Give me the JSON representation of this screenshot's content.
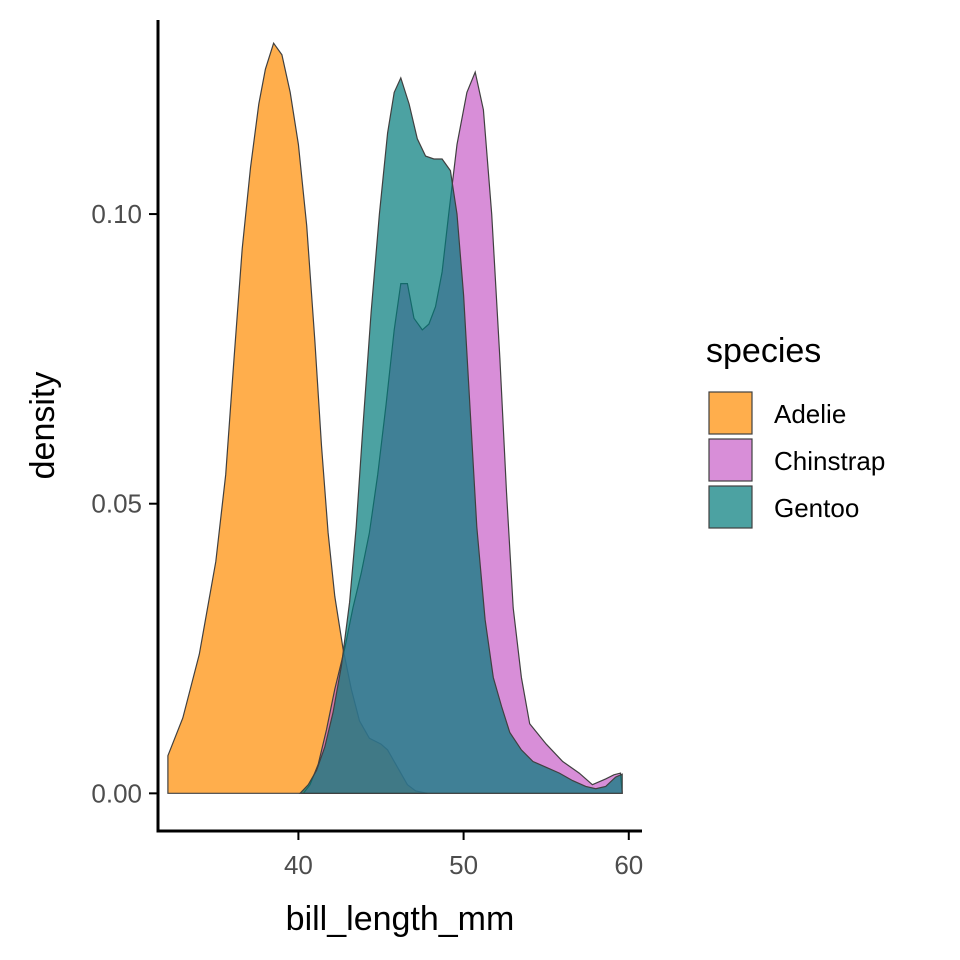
{
  "chart_data": {
    "type": "area",
    "subtype": "density",
    "xlabel": "bill_length_mm",
    "ylabel": "density",
    "xlim": [
      31.5,
      60.8
    ],
    "ylim": [
      -0.0065,
      0.1335
    ],
    "x_ticks": [
      40,
      50,
      60
    ],
    "x_tick_labels": [
      "40",
      "50",
      "60"
    ],
    "y_ticks": [
      0,
      0.05,
      0.1
    ],
    "y_tick_labels": [
      "0.00",
      "0.05",
      "0.10"
    ],
    "grid": false,
    "legend": {
      "title": "species",
      "position": "right"
    },
    "fill_opacity": 0.7,
    "series": [
      {
        "name": "Adelie",
        "color": "#FF8C00",
        "points": [
          [
            32.1,
            0.0065
          ],
          [
            33.0,
            0.013
          ],
          [
            34.0,
            0.024
          ],
          [
            35.0,
            0.04
          ],
          [
            35.6,
            0.055
          ],
          [
            36.1,
            0.075
          ],
          [
            36.6,
            0.094
          ],
          [
            37.1,
            0.108
          ],
          [
            37.6,
            0.119
          ],
          [
            38.0,
            0.125
          ],
          [
            38.5,
            0.1295
          ],
          [
            39.0,
            0.1275
          ],
          [
            39.5,
            0.121
          ],
          [
            40.0,
            0.112
          ],
          [
            40.5,
            0.098
          ],
          [
            41.0,
            0.078
          ],
          [
            41.4,
            0.06
          ],
          [
            41.8,
            0.045
          ],
          [
            42.2,
            0.034
          ],
          [
            42.7,
            0.025
          ],
          [
            43.2,
            0.018
          ],
          [
            43.7,
            0.0125
          ],
          [
            44.3,
            0.0095
          ],
          [
            45.0,
            0.0085
          ],
          [
            45.4,
            0.0075
          ],
          [
            45.8,
            0.0055
          ],
          [
            46.2,
            0.0035
          ],
          [
            46.6,
            0.0015
          ],
          [
            47.1,
            0.0004
          ],
          [
            47.8,
            0.0
          ]
        ]
      },
      {
        "name": "Chinstrap",
        "color": "#C85EC7",
        "points": [
          [
            40.3,
            0.0
          ],
          [
            40.7,
            0.0015
          ],
          [
            41.2,
            0.005
          ],
          [
            41.7,
            0.011
          ],
          [
            42.2,
            0.018
          ],
          [
            42.8,
            0.025
          ],
          [
            43.3,
            0.032
          ],
          [
            43.8,
            0.038
          ],
          [
            44.3,
            0.045
          ],
          [
            44.8,
            0.055
          ],
          [
            45.3,
            0.067
          ],
          [
            45.8,
            0.08
          ],
          [
            46.2,
            0.088
          ],
          [
            46.6,
            0.088
          ],
          [
            47.0,
            0.082
          ],
          [
            47.5,
            0.08
          ],
          [
            47.9,
            0.081
          ],
          [
            48.3,
            0.084
          ],
          [
            48.7,
            0.09
          ],
          [
            49.1,
            0.1
          ],
          [
            49.6,
            0.112
          ],
          [
            50.2,
            0.121
          ],
          [
            50.7,
            0.1245
          ],
          [
            51.2,
            0.118
          ],
          [
            51.7,
            0.1
          ],
          [
            52.2,
            0.075
          ],
          [
            52.6,
            0.052
          ],
          [
            53.0,
            0.032
          ],
          [
            53.5,
            0.02
          ],
          [
            54.0,
            0.012
          ],
          [
            55.0,
            0.0085
          ],
          [
            56.0,
            0.0055
          ],
          [
            57.0,
            0.0035
          ],
          [
            57.8,
            0.0015
          ],
          [
            58.6,
            0.0025
          ],
          [
            59.1,
            0.0032
          ],
          [
            59.5,
            0.0035
          ],
          [
            59.6,
            0.0
          ]
        ]
      },
      {
        "name": "Gentoo",
        "color": "#007B7B",
        "points": [
          [
            40.1,
            0.0
          ],
          [
            40.6,
            0.0015
          ],
          [
            41.1,
            0.004
          ],
          [
            41.6,
            0.008
          ],
          [
            42.1,
            0.014
          ],
          [
            42.6,
            0.022
          ],
          [
            43.1,
            0.033
          ],
          [
            43.5,
            0.046
          ],
          [
            43.9,
            0.063
          ],
          [
            44.4,
            0.083
          ],
          [
            44.9,
            0.1
          ],
          [
            45.4,
            0.114
          ],
          [
            45.8,
            0.121
          ],
          [
            46.2,
            0.1235
          ],
          [
            46.7,
            0.119
          ],
          [
            47.2,
            0.113
          ],
          [
            47.7,
            0.11
          ],
          [
            48.2,
            0.1095
          ],
          [
            48.7,
            0.1095
          ],
          [
            49.2,
            0.1075
          ],
          [
            49.6,
            0.1
          ],
          [
            50.0,
            0.086
          ],
          [
            50.4,
            0.066
          ],
          [
            50.8,
            0.046
          ],
          [
            51.3,
            0.03
          ],
          [
            51.8,
            0.02
          ],
          [
            52.3,
            0.015
          ],
          [
            52.8,
            0.0105
          ],
          [
            53.5,
            0.0075
          ],
          [
            54.2,
            0.0055
          ],
          [
            55.0,
            0.0045
          ],
          [
            55.8,
            0.0035
          ],
          [
            56.6,
            0.0022
          ],
          [
            57.4,
            0.0012
          ],
          [
            58.0,
            0.0008
          ],
          [
            58.6,
            0.0012
          ],
          [
            59.2,
            0.0028
          ],
          [
            59.6,
            0.0033
          ],
          [
            59.6,
            0.0
          ]
        ]
      }
    ]
  }
}
